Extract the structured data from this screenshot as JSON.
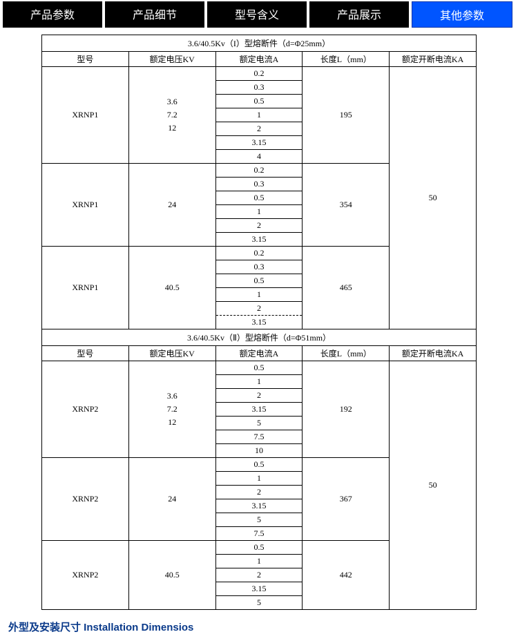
{
  "tabs": [
    {
      "label": "产品参数",
      "active": false
    },
    {
      "label": "产品细节",
      "active": false
    },
    {
      "label": "型号含义",
      "active": false
    },
    {
      "label": "产品展示",
      "active": false
    },
    {
      "label": "其他参数",
      "active": true
    }
  ],
  "section1": {
    "title": "3.6/40.5Kv（I）型熔断件（d=Φ25mm）",
    "headers": {
      "c1": "型号",
      "c2": "额定电压KV",
      "c3": "额定电流A",
      "c4": "长度L（mm）",
      "c5": "额定开断电流KA"
    },
    "rows": [
      {
        "model": "XRNP1",
        "voltage": "3.6\n7.2\n12",
        "currents": [
          "0.2",
          "0.3",
          "0.5",
          "1",
          "2",
          "3.15",
          "4"
        ],
        "length": "195"
      },
      {
        "model": "XRNP1",
        "voltage": "24",
        "currents": [
          "0.2",
          "0.3",
          "0.5",
          "1",
          "2",
          "3.15"
        ],
        "length": "354"
      },
      {
        "model": "XRNP1",
        "voltage": "40.5",
        "currents": [
          "0.2",
          "0.3",
          "0.5",
          "1",
          "2",
          "3.15"
        ],
        "length": "465"
      }
    ],
    "breaking": "50"
  },
  "section2": {
    "title": "3.6/40.5Kv（Ⅱ）型熔断件（d=Φ51mm）",
    "headers": {
      "c1": "型号",
      "c2": "额定电压KV",
      "c3": "额定电流A",
      "c4": "长度L（mm）",
      "c5": "额定开断电流KA"
    },
    "rows": [
      {
        "model": "XRNP2",
        "voltage": "3.6\n7.2\n12",
        "currents": [
          "0.5",
          "1",
          "2",
          "3.15",
          "5",
          "7.5",
          "10"
        ],
        "length": "192"
      },
      {
        "model": "XRNP2",
        "voltage": "24",
        "currents": [
          "0.5",
          "1",
          "2",
          "3.15",
          "5",
          "7.5"
        ],
        "length": "367"
      },
      {
        "model": "XRNP2",
        "voltage": "40.5",
        "currents": [
          "0.5",
          "1",
          "2",
          "3.15",
          "5"
        ],
        "length": "442"
      }
    ],
    "breaking": "50"
  },
  "footer": {
    "title": "外型及安装尺寸 Installation Dimensios"
  },
  "style": {
    "tab_bg": "#000000",
    "tab_active_bg": "#0055ff",
    "tab_text": "#ffffff",
    "border_color": "#000000",
    "footer_color": "#0a3a8a",
    "font": "SimSun"
  }
}
